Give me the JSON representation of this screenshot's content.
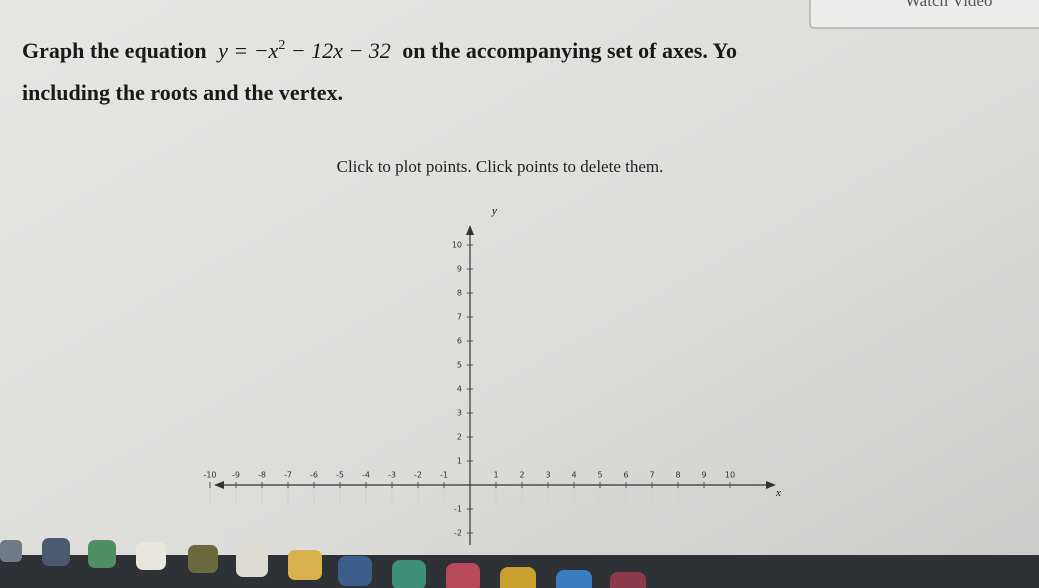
{
  "header": {
    "button": "Watch Video"
  },
  "question": {
    "lead": "Graph the equation",
    "equation_base": "y = −x",
    "equation_exp": "2",
    "equation_rest": " − 12x − 32",
    "tail": "on the accompanying set of axes. Yo",
    "line2": "including the roots and the vertex."
  },
  "instruction": "Click to plot points. Click points to delete them.",
  "graph": {
    "x_label": "x",
    "y_label": "y",
    "xticks": [
      -10,
      -9,
      -8,
      -7,
      -6,
      -5,
      -4,
      -3,
      -2,
      -1,
      1,
      2,
      3,
      4,
      5,
      6,
      7,
      8,
      9,
      10
    ],
    "yticks": [
      10,
      9,
      8,
      7,
      6,
      5,
      4,
      3,
      2,
      1,
      -1,
      -2
    ]
  }
}
